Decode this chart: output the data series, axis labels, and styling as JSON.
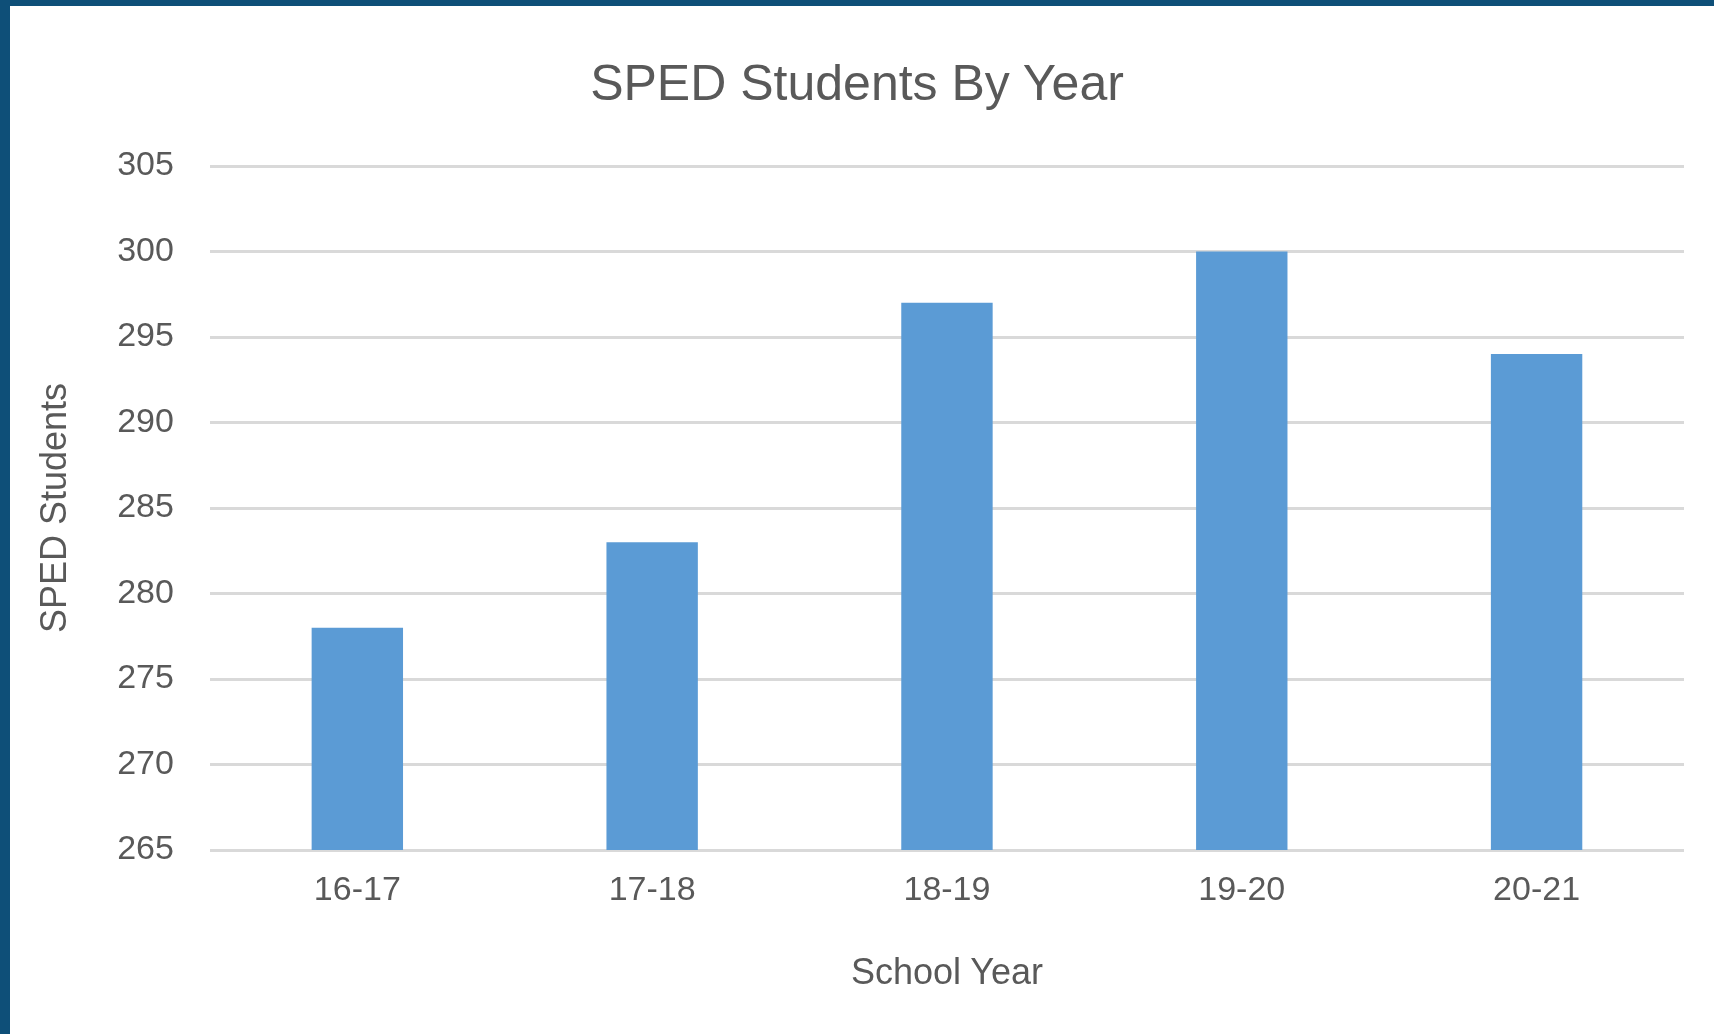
{
  "chart_data": {
    "type": "bar",
    "title": "SPED Students By Year",
    "xlabel": "School Year",
    "ylabel": "SPED Students",
    "categories": [
      "16-17",
      "17-18",
      "18-19",
      "19-20",
      "20-21"
    ],
    "values": [
      278,
      283,
      297,
      300,
      294
    ],
    "color": "#5b9bd5",
    "ylim": [
      265,
      305
    ],
    "yticks": [
      265,
      270,
      275,
      280,
      285,
      290,
      295,
      300,
      305
    ],
    "grid": "y",
    "legend": false
  }
}
